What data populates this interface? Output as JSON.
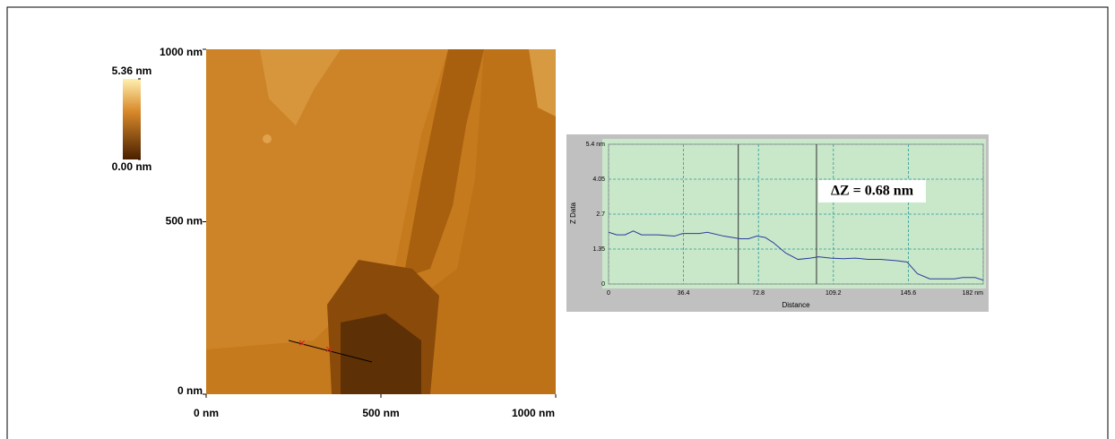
{
  "chart_data": [
    {
      "type": "image",
      "xlim": [
        0,
        1000
      ],
      "ylim": [
        0,
        1000
      ],
      "xticks": [
        {
          "value": 0,
          "label": "0 nm"
        },
        {
          "value": 500,
          "label": "500 nm"
        },
        {
          "value": 1000,
          "label": "1000 nm"
        }
      ],
      "yticks": [
        {
          "value": 0,
          "label": "0 nm"
        },
        {
          "value": 500,
          "label": "500 nm"
        },
        {
          "value": 1000,
          "label": "1000 nm"
        }
      ],
      "colorbar": {
        "lim": [
          0,
          5.36
        ],
        "ticks": [
          {
            "value": 0,
            "label": "0.00 nm"
          },
          {
            "value": 5.36,
            "label": "5.36 nm"
          }
        ]
      }
    },
    {
      "type": "line",
      "xlabel": "Distance",
      "ylabel": "Z Data",
      "annotation": "ΔZ = 0.68 nm",
      "x": [
        0,
        4,
        8,
        12,
        16,
        24,
        32,
        36,
        44,
        48,
        56,
        64,
        68,
        72,
        76,
        80,
        86,
        92,
        98,
        102,
        108,
        114,
        120,
        126,
        132,
        140,
        145,
        150,
        156,
        160,
        168,
        172,
        178,
        182
      ],
      "series": [
        {
          "color": "#2a3d9c",
          "values": [
            2.0,
            1.9,
            1.9,
            2.05,
            1.9,
            1.9,
            1.85,
            1.95,
            1.95,
            2.0,
            1.85,
            1.75,
            1.75,
            1.85,
            1.8,
            1.6,
            1.2,
            0.95,
            1.0,
            1.05,
            1.0,
            0.98,
            1.0,
            0.95,
            0.95,
            0.9,
            0.85,
            0.4,
            0.2,
            0.2,
            0.2,
            0.25,
            0.25,
            0.15
          ]
        }
      ],
      "cursors": [
        63,
        101
      ],
      "xlim": [
        0,
        182
      ],
      "ylim": [
        0,
        5.4
      ],
      "xticks": [
        0,
        36.4,
        72.8,
        109.2,
        145.6,
        {
          "value": 182,
          "label": "182 nm"
        }
      ],
      "yticks": [
        0,
        1.35,
        2.7,
        4.05,
        {
          "value": 5.4,
          "label": "5.4 nm"
        }
      ],
      "grid": true
    }
  ]
}
